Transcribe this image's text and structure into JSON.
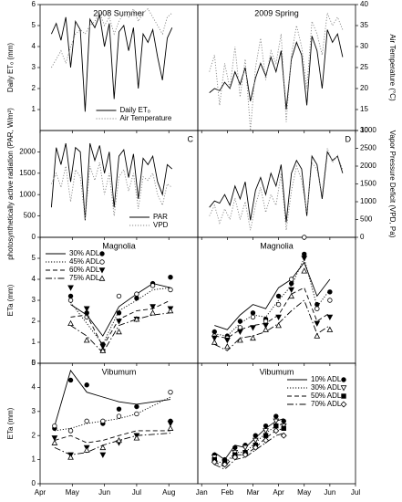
{
  "chart_data": [
    {
      "type": "line",
      "title": "2008 Summer",
      "ylabel": "Daily ETₒ (mm)",
      "legend": "lower center",
      "xlim": [
        4,
        8.9
      ],
      "ylim": [
        0,
        6
      ],
      "yticks": [
        1,
        2,
        3,
        4,
        5,
        6
      ],
      "y2lim": [
        10,
        40
      ],
      "x": [
        4.35,
        4.5,
        4.65,
        4.8,
        4.95,
        5.1,
        5.25,
        5.4,
        5.55,
        5.7,
        5.85,
        6.0,
        6.15,
        6.3,
        6.45,
        6.6,
        6.75,
        6.9,
        7.05,
        7.2,
        7.35,
        7.5,
        7.65,
        7.8,
        7.95,
        8.1
      ],
      "series": [
        {
          "name": "Daily ETₒ",
          "color": "#000000",
          "dash": "solid",
          "values": [
            4.6,
            5.1,
            4.3,
            5.4,
            3.0,
            5.2,
            4.8,
            0.9,
            5.3,
            4.9,
            5.5,
            4.0,
            5.1,
            1.5,
            4.7,
            5.0,
            3.8,
            4.9,
            2.0,
            4.6,
            4.2,
            4.8,
            3.5,
            2.4,
            4.4,
            4.9
          ]
        },
        {
          "name": "Air Temperature",
          "color": "#888888",
          "dash": "dotted",
          "axis": "y2",
          "values": [
            25,
            27,
            29,
            26,
            30,
            33,
            34,
            33,
            35,
            36,
            38,
            35,
            37,
            33,
            36,
            38,
            37,
            39,
            36,
            38,
            39,
            37,
            35,
            33,
            37,
            38
          ]
        }
      ]
    },
    {
      "type": "line",
      "title": "2009 Spring",
      "y2label": "Air Temperature (°C)",
      "xlim": [
        0.85,
        7
      ],
      "ylim": [
        0,
        6
      ],
      "y2lim": [
        10,
        40
      ],
      "y2ticks": [
        10,
        15,
        20,
        25,
        30,
        35,
        40
      ],
      "x": [
        1.3,
        1.5,
        1.7,
        1.9,
        2.1,
        2.3,
        2.5,
        2.7,
        2.9,
        3.1,
        3.3,
        3.5,
        3.7,
        3.9,
        4.1,
        4.3,
        4.5,
        4.7,
        4.9,
        5.1,
        5.3,
        5.5,
        5.7,
        5.9,
        6.1,
        6.3,
        6.5
      ],
      "series": [
        {
          "color": "#000000",
          "dash": "solid",
          "values": [
            1.8,
            2.0,
            1.9,
            2.3,
            2.0,
            2.8,
            2.2,
            3.0,
            1.4,
            2.5,
            3.2,
            2.6,
            3.5,
            2.8,
            3.8,
            1.0,
            3.4,
            4.2,
            3.6,
            1.2,
            4.5,
            3.8,
            2.0,
            4.8,
            4.2,
            4.6,
            3.5
          ]
        },
        {
          "color": "#888888",
          "dash": "dotted",
          "axis": "y2",
          "values": [
            24,
            28,
            16,
            26,
            20,
            30,
            18,
            27,
            10,
            25,
            32,
            22,
            29,
            26,
            33,
            12,
            28,
            35,
            30,
            20,
            36,
            33,
            28,
            38,
            35,
            37,
            34
          ]
        }
      ]
    },
    {
      "type": "line",
      "annotation": "C",
      "ylabel": "photosynthetically active radiation (PAR, W/m²)",
      "legend": "lower right",
      "xlim": [
        4,
        8.9
      ],
      "ylim": [
        0,
        2500
      ],
      "yticks": [
        0,
        500,
        1000,
        1500,
        2000
      ],
      "y2lim": [
        0,
        3000
      ],
      "x": [
        4.35,
        4.5,
        4.65,
        4.8,
        4.95,
        5.1,
        5.25,
        5.4,
        5.55,
        5.7,
        5.85,
        6.0,
        6.15,
        6.3,
        6.45,
        6.6,
        6.75,
        6.9,
        7.05,
        7.2,
        7.35,
        7.5,
        7.65,
        7.8,
        7.95,
        8.1
      ],
      "series": [
        {
          "name": "PAR",
          "color": "#000000",
          "dash": "solid",
          "values": [
            700,
            2100,
            1700,
            2200,
            1300,
            2100,
            2000,
            400,
            2200,
            1800,
            2150,
            1500,
            2000,
            700,
            1900,
            2050,
            1400,
            1950,
            900,
            1850,
            1700,
            1900,
            1300,
            1000,
            1700,
            1600
          ]
        },
        {
          "name": "VPD",
          "color": "#888888",
          "dash": "dotted",
          "axis": "y2",
          "values": [
            1500,
            1800,
            1400,
            2000,
            1000,
            1900,
            1700,
            500,
            2000,
            1600,
            2100,
            1200,
            1800,
            600,
            1700,
            1900,
            1300,
            1800,
            800,
            1700,
            1600,
            1800,
            1200,
            900,
            1500,
            1400
          ]
        }
      ]
    },
    {
      "type": "line",
      "annotation": "D",
      "y2label": "Vapor Pressure Deficit (VPD, Pa)",
      "xlim": [
        0.85,
        7
      ],
      "ylim": [
        0,
        2500
      ],
      "y2lim": [
        0,
        3000
      ],
      "y2ticks": [
        0,
        500,
        1000,
        1500,
        2000,
        2500,
        3000
      ],
      "x": [
        1.3,
        1.5,
        1.7,
        1.9,
        2.1,
        2.3,
        2.5,
        2.7,
        2.9,
        3.1,
        3.3,
        3.5,
        3.7,
        3.9,
        4.1,
        4.3,
        4.5,
        4.7,
        4.9,
        5.1,
        5.3,
        5.5,
        5.7,
        5.9,
        6.1,
        6.3,
        6.5
      ],
      "series": [
        {
          "color": "#000000",
          "dash": "solid",
          "values": [
            700,
            850,
            800,
            1000,
            750,
            1200,
            900,
            1300,
            400,
            1100,
            1400,
            1000,
            1500,
            1200,
            1700,
            350,
            1500,
            1800,
            1600,
            500,
            1900,
            1700,
            900,
            2000,
            1800,
            1900,
            1500
          ]
        },
        {
          "color": "#888888",
          "dash": "dotted",
          "axis": "y2",
          "values": [
            600,
            900,
            400,
            800,
            500,
            1100,
            500,
            1000,
            200,
            900,
            1400,
            700,
            1200,
            900,
            1800,
            200,
            1300,
            2000,
            1600,
            700,
            2100,
            1900,
            1200,
            2500,
            2100,
            2300,
            1900
          ]
        }
      ]
    },
    {
      "type": "line",
      "title": "Magnolia",
      "ylabel": "ETa (mm)",
      "legend": "upper left",
      "xlim": [
        4,
        8.9
      ],
      "ylim": [
        0,
        6
      ],
      "yticks": [
        0,
        1,
        2,
        3,
        4,
        5
      ],
      "x": [
        4.95,
        5.45,
        5.95,
        6.45,
        7.0,
        7.5,
        8.05
      ],
      "series": [
        {
          "name": "30% ADL",
          "color": "#000000",
          "dash": "solid",
          "marker": "circle-filled",
          "values": [
            2.8,
            2.3,
            1.3,
            2.7,
            3.3,
            3.8,
            3.6
          ],
          "observed": [
            3.2,
            2.4,
            0.9,
            2.4,
            3.1,
            3.8,
            4.1
          ]
        },
        {
          "name": "45% ADL",
          "color": "#000000",
          "dash": "dotted",
          "marker": "circle-open",
          "values": [
            2.9,
            1.9,
            0.9,
            2.5,
            3.0,
            3.5,
            3.6
          ],
          "observed": [
            3.0,
            2.2,
            0.6,
            3.2,
            3.3,
            3.7,
            3.5
          ]
        },
        {
          "name": "60% ADL",
          "color": "#000000",
          "dash": "dashed",
          "marker": "triangle-down-filled",
          "values": [
            2.2,
            2.3,
            0.8,
            2.1,
            2.5,
            2.6,
            3.0
          ],
          "observed": [
            3.6,
            2.6,
            0.8,
            2.0,
            2.1,
            2.7,
            2.6
          ]
        },
        {
          "name": "75% ADL",
          "color": "#000000",
          "dash": "dashdot",
          "marker": "triangle-up-open",
          "values": [
            1.8,
            1.3,
            0.5,
            1.8,
            2.1,
            2.3,
            2.4
          ],
          "observed": [
            1.9,
            1.1,
            0.6,
            1.5,
            2.1,
            2.4,
            2.5
          ]
        }
      ]
    },
    {
      "type": "line",
      "title": "Magnolia",
      "xlim": [
        0.85,
        7
      ],
      "ylim": [
        0,
        6
      ],
      "x": [
        1.5,
        2.0,
        2.5,
        3.0,
        3.5,
        4.0,
        4.5,
        5.0,
        5.5,
        6.0
      ],
      "series": [
        {
          "color": "#000000",
          "dash": "solid",
          "marker": "circle-filled",
          "values": [
            1.8,
            1.6,
            2.3,
            2.8,
            2.6,
            3.6,
            4.0,
            4.8,
            3.2,
            4.0
          ],
          "observed": [
            1.5,
            1.3,
            2.0,
            2.4,
            2.1,
            3.2,
            3.8,
            5.2,
            2.8,
            3.4
          ]
        },
        {
          "color": "#000000",
          "dash": "dotted",
          "marker": "circle-open",
          "values": [
            1.4,
            1.3,
            1.9,
            2.3,
            2.2,
            3.0,
            3.7,
            5.0,
            2.7,
            3.5
          ],
          "observed": [
            1.3,
            1.2,
            1.7,
            2.2,
            2.0,
            2.8,
            4.0,
            6.0,
            2.6,
            3.0
          ]
        },
        {
          "color": "#000000",
          "dash": "dashed",
          "marker": "triangle-down-filled",
          "values": [
            1.3,
            1.2,
            1.6,
            1.8,
            1.9,
            2.3,
            3.3,
            3.6,
            2.0,
            2.4
          ],
          "observed": [
            1.2,
            1.1,
            1.5,
            1.7,
            1.8,
            2.2,
            3.5,
            5.0,
            1.9,
            2.2
          ]
        },
        {
          "color": "#000000",
          "dash": "dashdot",
          "marker": "triangle-up-open",
          "values": [
            0.9,
            0.6,
            1.2,
            1.3,
            1.5,
            1.9,
            2.5,
            3.0,
            1.4,
            1.8
          ],
          "observed": [
            1.0,
            0.8,
            1.1,
            1.2,
            1.6,
            1.8,
            3.2,
            4.4,
            1.3,
            1.6
          ]
        }
      ]
    },
    {
      "type": "line",
      "title": "Vibumum",
      "ylabel": "ETa (mm)",
      "xlim": [
        4,
        8.9
      ],
      "ylim": [
        0,
        5
      ],
      "yticks": [
        0,
        1,
        2,
        3,
        4,
        5
      ],
      "xticks": [
        {
          "value": 4,
          "label": "Apr"
        },
        {
          "value": 5,
          "label": "May"
        },
        {
          "value": 6,
          "label": "Jun"
        },
        {
          "value": 7,
          "label": "Jul"
        },
        {
          "value": 8,
          "label": "Aug"
        }
      ],
      "x": [
        4.45,
        4.95,
        5.45,
        5.95,
        6.45,
        7.0,
        8.05
      ],
      "series": [
        {
          "color": "#000000",
          "dash": "solid",
          "marker": "circle-filled",
          "values": [
            2.4,
            4.7,
            3.8,
            3.6,
            3.4,
            3.3,
            3.5
          ],
          "observed": [
            2.3,
            4.3,
            4.1,
            2.5,
            3.1,
            3.2,
            2.6
          ]
        },
        {
          "color": "#000000",
          "dash": "dotted",
          "marker": "circle-open",
          "values": [
            2.2,
            2.3,
            2.5,
            2.6,
            2.7,
            2.9,
            3.6
          ],
          "observed": [
            2.4,
            2.2,
            2.6,
            2.6,
            2.8,
            2.9,
            3.8
          ]
        },
        {
          "color": "#000000",
          "dash": "dashed",
          "marker": "triangle-down-filled",
          "values": [
            1.8,
            2.0,
            1.7,
            1.8,
            2.0,
            2.2,
            2.2
          ],
          "observed": [
            1.9,
            1.2,
            1.5,
            1.2,
            1.7,
            2.0,
            2.5
          ]
        },
        {
          "color": "#000000",
          "dash": "dashdot",
          "marker": "triangle-up-open",
          "values": [
            1.5,
            1.2,
            1.3,
            1.6,
            1.8,
            2.0,
            2.1
          ],
          "observed": [
            1.7,
            1.1,
            1.4,
            1.5,
            1.8,
            1.9,
            2.3
          ]
        }
      ]
    },
    {
      "type": "line",
      "title": "Vibumum",
      "legend": "upper right",
      "xlim": [
        0.85,
        7
      ],
      "ylim": [
        0,
        5
      ],
      "xticks": [
        {
          "value": 1,
          "label": "Jan"
        },
        {
          "value": 2,
          "label": "Feb"
        },
        {
          "value": 3,
          "label": "Mar"
        },
        {
          "value": 4,
          "label": "Apr"
        },
        {
          "value": 5,
          "label": "May"
        },
        {
          "value": 6,
          "label": "Jun"
        },
        {
          "value": 7,
          "label": "Jul"
        }
      ],
      "x": [
        1.5,
        1.9,
        2.3,
        2.7,
        3.1,
        3.5,
        3.9,
        4.2
      ],
      "series": [
        {
          "name": "10% ADL",
          "color": "#000000",
          "dash": "solid",
          "marker": "circle-filled",
          "values": [
            1.3,
            1.0,
            1.6,
            1.5,
            1.9,
            2.3,
            2.6,
            2.7
          ],
          "observed": [
            1.2,
            1.0,
            1.5,
            1.6,
            2.0,
            2.4,
            2.8,
            2.6
          ]
        },
        {
          "name": "30% ADL",
          "color": "#000000",
          "dash": "dotted",
          "marker": "triangle-down-open",
          "values": [
            1.0,
            0.8,
            1.3,
            1.3,
            1.7,
            2.1,
            2.4,
            2.5
          ],
          "observed": [
            1.1,
            0.9,
            1.3,
            1.5,
            1.8,
            2.2,
            2.6,
            2.4
          ]
        },
        {
          "name": "50% ADL",
          "color": "#000000",
          "dash": "dashed",
          "marker": "square-filled",
          "values": [
            0.9,
            0.7,
            1.2,
            1.2,
            1.5,
            1.9,
            2.2,
            2.3
          ],
          "observed": [
            1.0,
            0.9,
            1.2,
            1.3,
            1.6,
            2.0,
            2.4,
            2.3
          ]
        },
        {
          "name": "70% ADL",
          "color": "#000000",
          "dash": "dashdot",
          "marker": "diamond-open",
          "values": [
            0.8,
            0.6,
            1.0,
            1.1,
            1.4,
            1.7,
            2.0,
            2.1
          ],
          "observed": [
            0.9,
            0.8,
            1.1,
            1.2,
            1.5,
            1.8,
            2.2,
            2.0
          ]
        }
      ]
    }
  ]
}
